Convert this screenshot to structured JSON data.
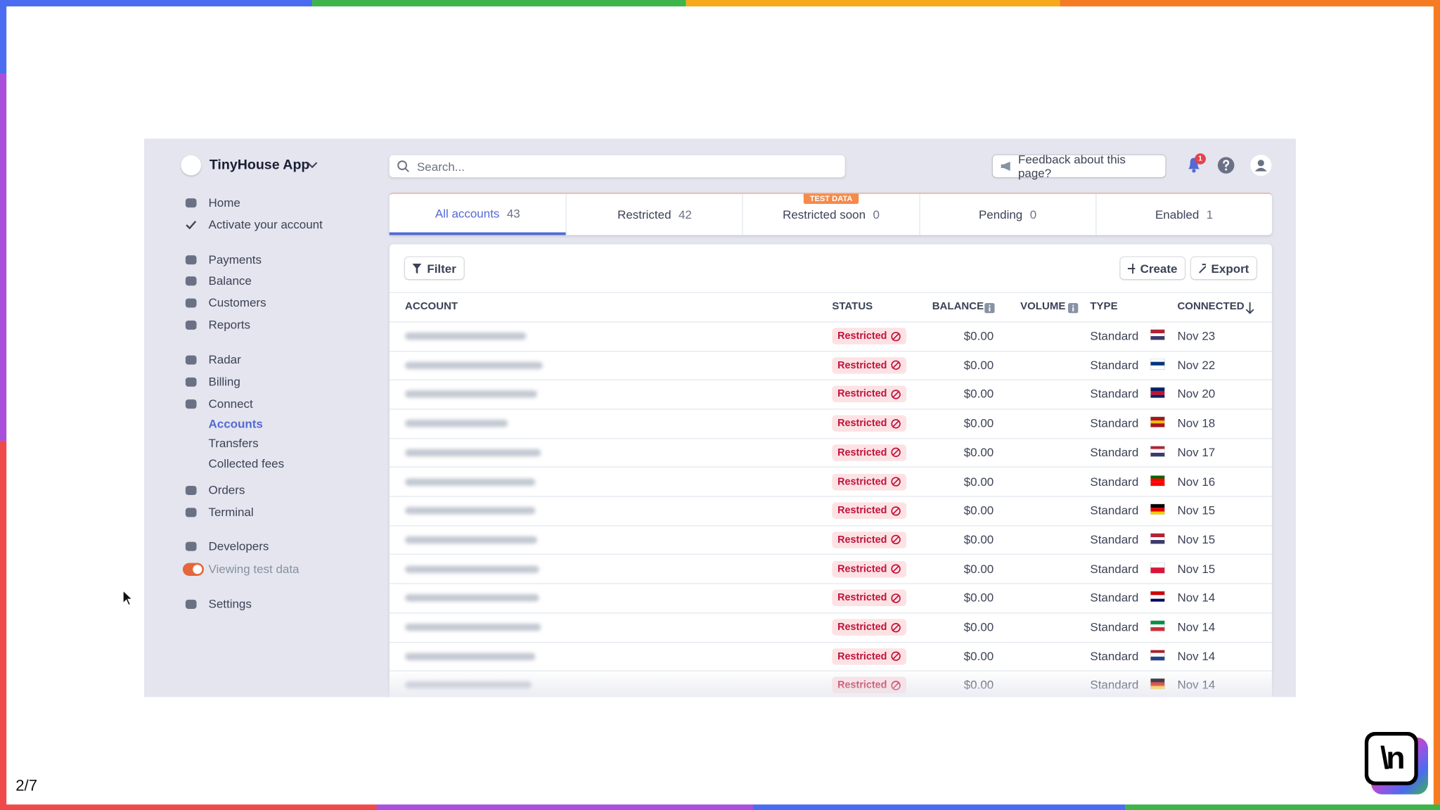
{
  "app_name": "TinyHouse App",
  "search_placeholder": "Search...",
  "feedback": "Feedback about this page?",
  "notification_count": 1,
  "nav": [
    {
      "label": "Home"
    },
    {
      "label": "Activate your account"
    },
    {
      "label": "Payments"
    },
    {
      "label": "Balance"
    },
    {
      "label": "Customers"
    },
    {
      "label": "Reports"
    },
    {
      "label": "Radar"
    },
    {
      "label": "Billing"
    },
    {
      "label": "Connect"
    },
    {
      "label": "Accounts",
      "sub": true,
      "active": true
    },
    {
      "label": "Transfers",
      "sub": true
    },
    {
      "label": "Collected fees",
      "sub": true
    },
    {
      "label": "Orders"
    },
    {
      "label": "Terminal"
    },
    {
      "label": "Developers"
    },
    {
      "label": "Viewing test data",
      "toggle": true
    },
    {
      "label": "Settings"
    }
  ],
  "tabs": [
    {
      "label": "All accounts",
      "count": 43
    },
    {
      "label": "Restricted",
      "count": 42
    },
    {
      "label": "Restricted soon",
      "count": 0
    },
    {
      "label": "Pending",
      "count": 0
    },
    {
      "label": "Enabled",
      "count": 1
    }
  ],
  "test_badge": "TEST DATA",
  "toolbar": {
    "filter": "Filter",
    "create": "Create",
    "export": "Export"
  },
  "table": {
    "columns": [
      "ACCOUNT",
      "STATUS",
      "BALANCE",
      "VOLUME",
      "TYPE",
      "CONNECTED"
    ],
    "rows": [
      {
        "status": "Restricted",
        "balance": "$0.00",
        "type": "Standard",
        "connected": "Nov 23",
        "flag": [
          "#b22234",
          "#ffffff",
          "#3c3b6e"
        ]
      },
      {
        "status": "Restricted",
        "balance": "$0.00",
        "type": "Standard",
        "connected": "Nov 22",
        "flag": [
          "#ffffff",
          "#003580",
          "#ffffff"
        ]
      },
      {
        "status": "Restricted",
        "balance": "$0.00",
        "type": "Standard",
        "connected": "Nov 20",
        "flag": [
          "#012169",
          "#c8102e",
          "#012169"
        ]
      },
      {
        "status": "Restricted",
        "balance": "$0.00",
        "type": "Standard",
        "connected": "Nov 18",
        "flag": [
          "#aa151b",
          "#f1bf00",
          "#aa151b"
        ]
      },
      {
        "status": "Restricted",
        "balance": "$0.00",
        "type": "Standard",
        "connected": "Nov 17",
        "flag": [
          "#b22234",
          "#ffffff",
          "#3c3b6e"
        ]
      },
      {
        "status": "Restricted",
        "balance": "$0.00",
        "type": "Standard",
        "connected": "Nov 16",
        "flag": [
          "#006600",
          "#ff0000",
          "#ff0000"
        ]
      },
      {
        "status": "Restricted",
        "balance": "$0.00",
        "type": "Standard",
        "connected": "Nov 15",
        "flag": [
          "#000000",
          "#dd0000",
          "#ffce00"
        ]
      },
      {
        "status": "Restricted",
        "balance": "$0.00",
        "type": "Standard",
        "connected": "Nov 15",
        "flag": [
          "#b22234",
          "#ffffff",
          "#3c3b6e"
        ]
      },
      {
        "status": "Restricted",
        "balance": "$0.00",
        "type": "Standard",
        "connected": "Nov 15",
        "flag": [
          "#ffffff",
          "#dc143c"
        ]
      },
      {
        "status": "Restricted",
        "balance": "$0.00",
        "type": "Standard",
        "connected": "Nov 14",
        "flag": [
          "#cc0001",
          "#ffffff",
          "#010066"
        ]
      },
      {
        "status": "Restricted",
        "balance": "$0.00",
        "type": "Standard",
        "connected": "Nov 14",
        "flag": [
          "#009246",
          "#ffffff",
          "#ce2b37"
        ]
      },
      {
        "status": "Restricted",
        "balance": "$0.00",
        "type": "Standard",
        "connected": "Nov 14",
        "flag": [
          "#ae1c28",
          "#ffffff",
          "#21468b"
        ]
      },
      {
        "status": "Restricted",
        "balance": "$0.00",
        "type": "Standard",
        "connected": "Nov 14",
        "flag": [
          "#000000",
          "#dd0000",
          "#ffce00"
        ]
      }
    ]
  },
  "page_indicator": "2/7",
  "logo": "\\n"
}
